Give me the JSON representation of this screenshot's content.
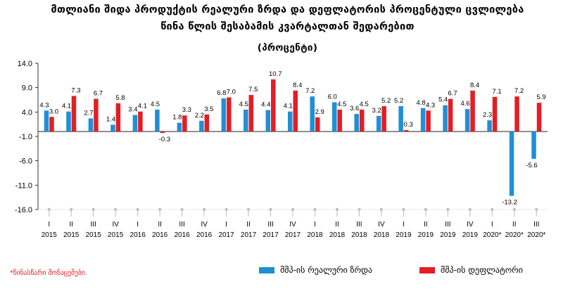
{
  "title_line1": "მთლიანი შიდა პროდუქტის რეალური ზრდა და დეფლატორის პროცენტული ცვლილება",
  "title_line2": "წინა წლის შესაბამის კვარტალთან შედარებით",
  "subtitle": "(პროცენტი)",
  "footnote": "*წინასწარი მონაცემები.",
  "colors": {
    "growth": "#1f8fd6",
    "deflator": "#e31e24",
    "axis": "#000000",
    "gridline": "#d0d0d0"
  },
  "chart_data": {
    "type": "bar",
    "y_ticks": [
      "14.0",
      "9.0",
      "4.0",
      "-1.0",
      "-6.0",
      "-11.0",
      "-16.0"
    ],
    "ylim": [
      -16,
      14
    ],
    "categories": [
      "I",
      "II",
      "III",
      "IV",
      "I",
      "II",
      "III",
      "IV",
      "I",
      "II",
      "III",
      "IV",
      "I",
      "II",
      "III",
      "IV",
      "I",
      "II",
      "III",
      "IV",
      "I",
      "II",
      "III"
    ],
    "years": [
      "2015",
      "2015",
      "2015",
      "2015",
      "2016",
      "2016",
      "2016",
      "2016",
      "2017",
      "2017",
      "2017",
      "2017",
      "2018",
      "2018",
      "2018",
      "2018",
      "2019",
      "2019",
      "2019",
      "2019",
      "2020*",
      "2020*",
      "2020*"
    ],
    "series": [
      {
        "name": "მშპ-ის რეალური ზრდა",
        "color": "#1f8fd6",
        "values": [
          4.3,
          4.1,
          2.7,
          1.4,
          3.4,
          4.5,
          1.8,
          2.2,
          6.8,
          4.5,
          4.4,
          4.1,
          7.2,
          6.0,
          3.6,
          3.2,
          5.2,
          4.8,
          5.4,
          4.6,
          2.3,
          -13.2,
          -5.6
        ],
        "labels": [
          "4.3",
          "4.1",
          "2.7",
          "1.4",
          "3.4",
          "4.5",
          "1.8",
          "2.2",
          "6.8",
          "4.5",
          "4.4",
          "4.1",
          "7.2",
          "6.0",
          "3.6",
          "3.2",
          "5.2",
          "4.8",
          "5.4",
          "4.6",
          "2.3",
          "-13.2",
          "-5.6"
        ]
      },
      {
        "name": "მშპ-ის დეფლატორი",
        "color": "#e31e24",
        "values": [
          3.0,
          7.3,
          6.7,
          5.8,
          4.1,
          -0.3,
          3.3,
          3.5,
          7.0,
          7.5,
          10.7,
          8.4,
          2.9,
          4.5,
          4.5,
          5.2,
          0.3,
          4.3,
          6.7,
          8.4,
          7.1,
          7.2,
          5.9
        ],
        "labels": [
          "3.0",
          "7.3",
          "6.7",
          "5.8",
          "4.1",
          "-0.3",
          "3.3",
          "3.5",
          "7.0",
          "7.5",
          "10.7",
          "8.4",
          "2.9",
          "4.5",
          "4.5",
          "5.2",
          "0.3",
          "4.3",
          "6.7",
          "8.4",
          "7.1",
          "7.2",
          "5.9"
        ]
      }
    ],
    "legend_position": "bottom-right",
    "grid": false
  }
}
